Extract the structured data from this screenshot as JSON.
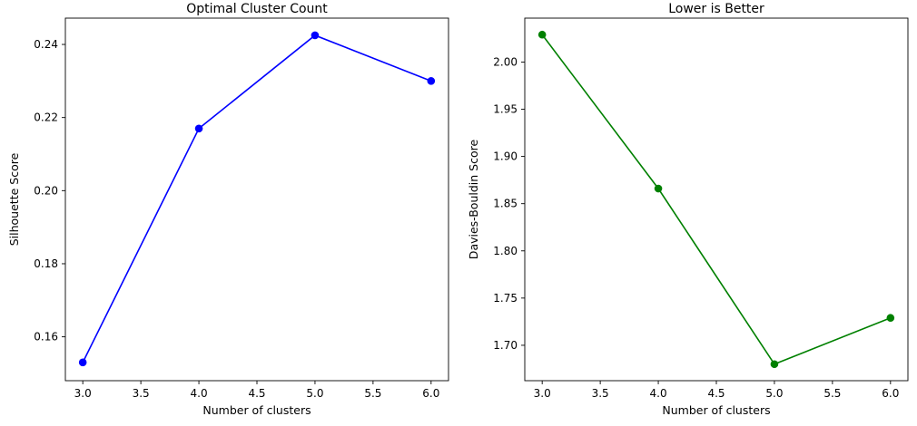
{
  "chart_data": [
    {
      "type": "line",
      "title": "Optimal Cluster Count",
      "xlabel": "Number of clusters",
      "ylabel": "Silhouette Score",
      "x": [
        3,
        4,
        5,
        6
      ],
      "series": [
        {
          "values": [
            0.153,
            0.217,
            0.2425,
            0.23
          ],
          "color": "#0000ff",
          "marker": "circle"
        }
      ],
      "xlim": [
        2.85,
        6.15
      ],
      "ylim": [
        0.148,
        0.2472
      ],
      "xticks": [
        3.0,
        3.5,
        4.0,
        4.5,
        5.0,
        5.5,
        6.0
      ],
      "xtick_labels": [
        "3.0",
        "3.5",
        "4.0",
        "4.5",
        "5.0",
        "5.5",
        "6.0"
      ],
      "yticks": [
        0.16,
        0.18,
        0.2,
        0.22,
        0.24
      ],
      "ytick_labels": [
        "0.16",
        "0.18",
        "0.20",
        "0.22",
        "0.24"
      ],
      "grid": false,
      "legend": "none"
    },
    {
      "type": "line",
      "title": "Lower is Better",
      "xlabel": "Number of clusters",
      "ylabel": "Davies-Bouldin Score",
      "x": [
        3,
        4,
        5,
        6
      ],
      "series": [
        {
          "values": [
            2.029,
            1.866,
            1.68,
            1.729
          ],
          "color": "#008000",
          "marker": "circle"
        }
      ],
      "xlim": [
        2.85,
        6.15
      ],
      "ylim": [
        1.6625,
        2.0465
      ],
      "xticks": [
        3.0,
        3.5,
        4.0,
        4.5,
        5.0,
        5.5,
        6.0
      ],
      "xtick_labels": [
        "3.0",
        "3.5",
        "4.0",
        "4.5",
        "5.0",
        "5.5",
        "6.0"
      ],
      "yticks": [
        1.7,
        1.75,
        1.8,
        1.85,
        1.9,
        1.95,
        2.0
      ],
      "ytick_labels": [
        "1.70",
        "1.75",
        "1.80",
        "1.85",
        "1.90",
        "1.95",
        "2.00"
      ],
      "grid": false,
      "legend": "none"
    }
  ]
}
